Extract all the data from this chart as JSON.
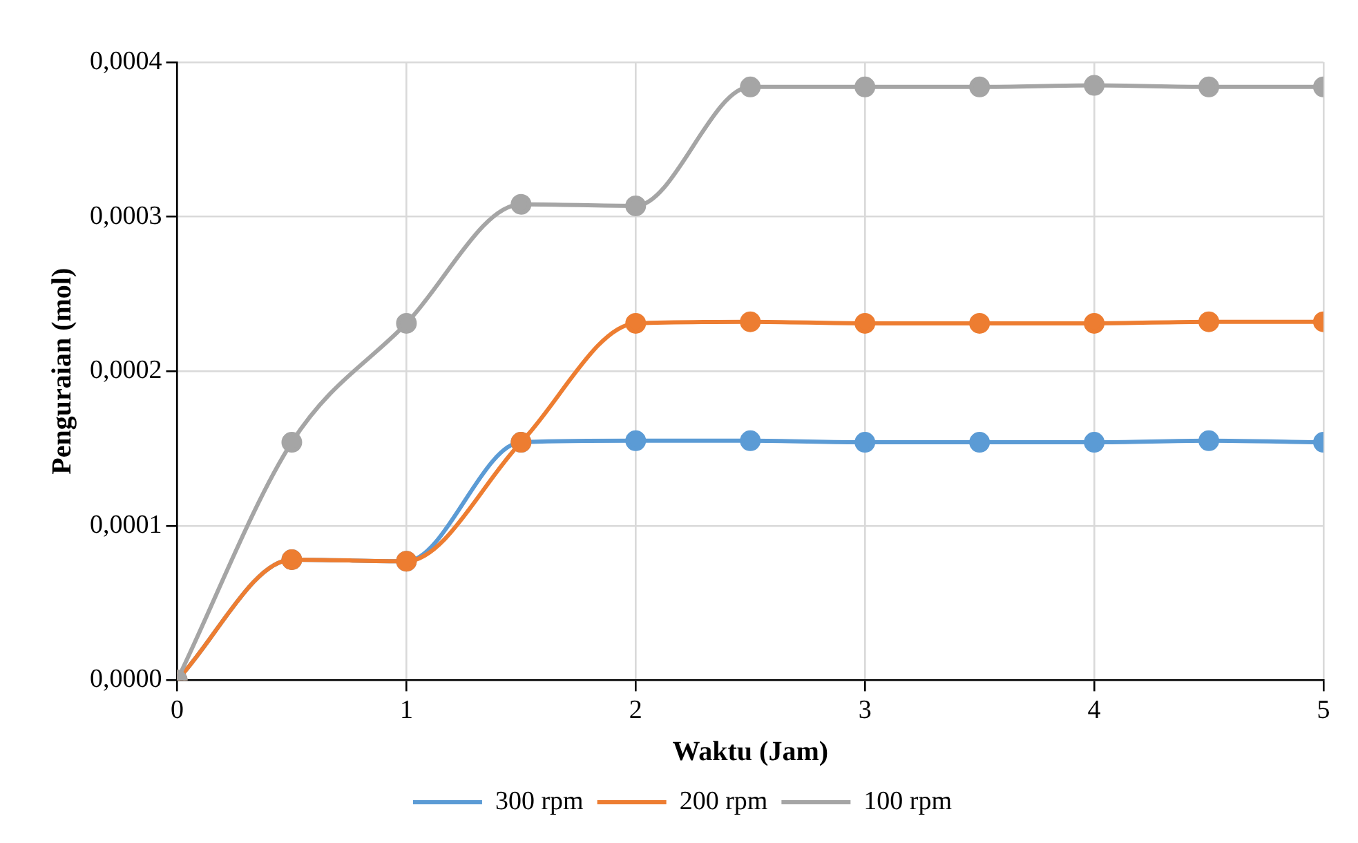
{
  "chart_data": {
    "type": "line",
    "xlabel": "Waktu (Jam)",
    "ylabel": "Penguraian (mol)",
    "x": [
      0,
      0.5,
      1,
      1.5,
      2,
      2.5,
      3,
      3.5,
      4,
      4.5,
      5
    ],
    "series": [
      {
        "name": "300 rpm",
        "color": "#5b9bd5",
        "values": [
          0,
          7.8e-05,
          7.7e-05,
          0.000154,
          0.000155,
          0.000155,
          0.000154,
          0.000154,
          0.000154,
          0.000155,
          0.000154
        ]
      },
      {
        "name": "200 rpm",
        "color": "#ed7d31",
        "values": [
          0,
          7.8e-05,
          7.7e-05,
          0.000154,
          0.000231,
          0.000232,
          0.000231,
          0.000231,
          0.000231,
          0.000232,
          0.000232
        ]
      },
      {
        "name": "100 rpm",
        "color": "#a5a5a5",
        "values": [
          0,
          0.000154,
          0.000231,
          0.000308,
          0.000307,
          0.000384,
          0.000384,
          0.000384,
          0.000385,
          0.000384,
          0.000384
        ]
      }
    ],
    "xlim": [
      0,
      5
    ],
    "xticks": [
      0,
      1,
      2,
      3,
      4,
      5
    ],
    "ylim": [
      0,
      0.0004
    ],
    "yticks": [
      {
        "value": 0,
        "label": "0,0000"
      },
      {
        "value": 0.0001,
        "label": "0,0001"
      },
      {
        "value": 0.0002,
        "label": "0,0002"
      },
      {
        "value": 0.0003,
        "label": "0,0003"
      },
      {
        "value": 0.0004,
        "label": "0,0004"
      }
    ],
    "grid": true,
    "legend": "bottom",
    "marker": "circle",
    "line_style": "solid"
  }
}
